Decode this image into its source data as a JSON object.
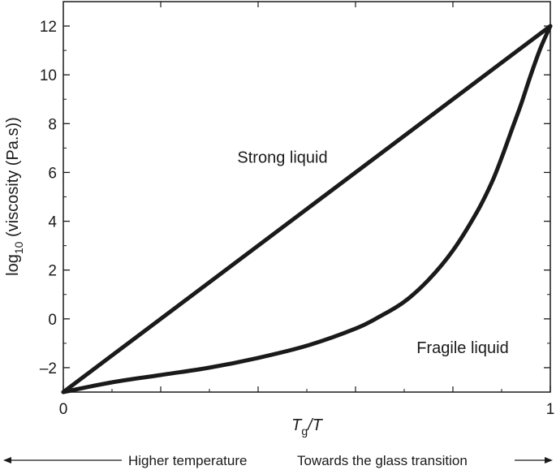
{
  "chart_data": {
    "type": "line",
    "title": "",
    "xlabel_main": "T",
    "xlabel_sub": "g",
    "xlabel_tail": "/T",
    "ylabel_prefix": "log",
    "ylabel_sub": "10",
    "ylabel_tail": " (viscosity (Pa.s))",
    "xlim": [
      0,
      1
    ],
    "ylim": [
      -3,
      13
    ],
    "x_ticks": [
      0,
      1
    ],
    "x_minor_ticks": [
      0.2,
      0.4,
      0.6,
      0.8
    ],
    "y_ticks": [
      -2,
      0,
      2,
      4,
      6,
      8,
      10,
      12
    ],
    "y_tick_labels": [
      "–2",
      "0",
      "2",
      "4",
      "6",
      "8",
      "10",
      "12"
    ],
    "grid": false,
    "series": [
      {
        "key": "strong",
        "x": [
          0,
          1
        ],
        "y": [
          -3,
          12
        ]
      },
      {
        "key": "fragile",
        "x": [
          0,
          0.1,
          0.2,
          0.3,
          0.4,
          0.5,
          0.6,
          0.65,
          0.7,
          0.75,
          0.8,
          0.85,
          0.88,
          0.9,
          0.92,
          0.94,
          0.96,
          0.98,
          1.0
        ],
        "y": [
          -3,
          -2.6,
          -2.3,
          -2.0,
          -1.6,
          -1.1,
          -0.4,
          0.1,
          0.7,
          1.6,
          2.8,
          4.4,
          5.6,
          6.6,
          7.7,
          8.8,
          10.0,
          11.1,
          12
        ]
      }
    ],
    "annotations": [
      {
        "text": "Strong liquid",
        "x": 0.45,
        "y": 6.4
      },
      {
        "text": "Fragile liquid",
        "x": 0.82,
        "y": -1.4
      }
    ],
    "footer": {
      "left": "Higher temperature",
      "right": "Towards the glass transition"
    }
  }
}
